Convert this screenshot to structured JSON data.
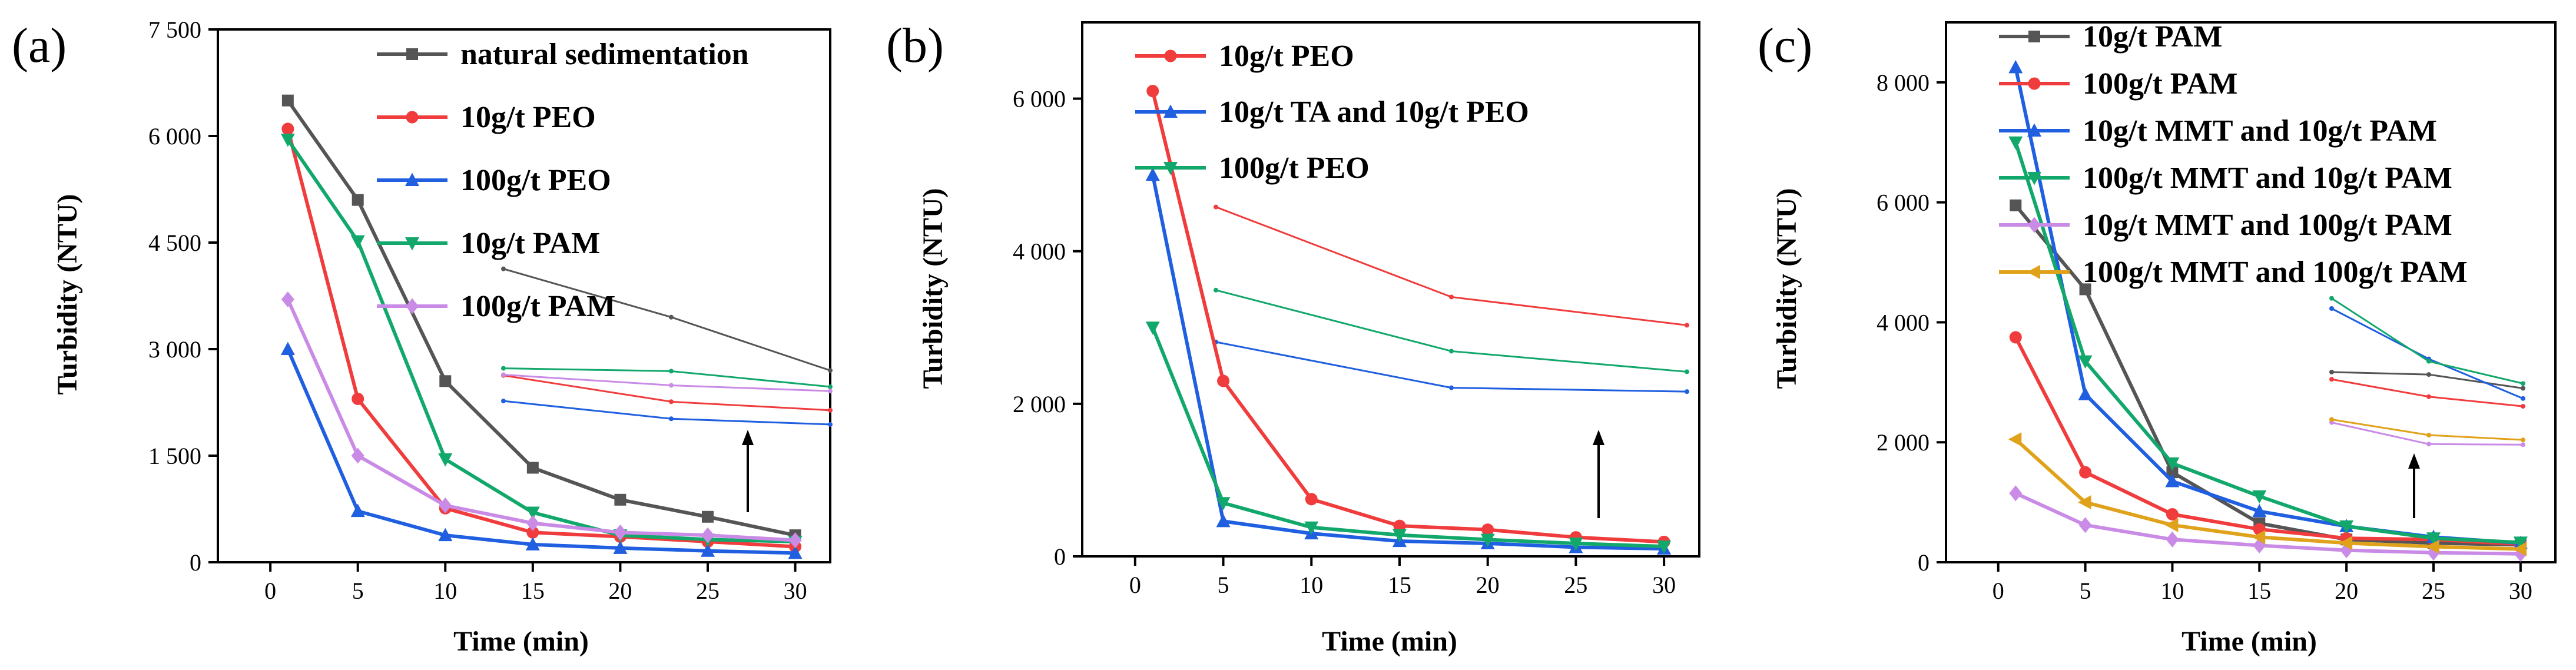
{
  "chart_data": [
    {
      "type": "line",
      "panel_label": "(a)",
      "xlabel": "Time (min)",
      "ylabel": "Turbidity (NTU)",
      "xlim": [
        -3,
        32
      ],
      "ylim": [
        0,
        7500
      ],
      "x_ticks": [
        0,
        5,
        10,
        15,
        20,
        25,
        30
      ],
      "y_ticks": [
        0,
        1500,
        3000,
        4500,
        6000,
        7500
      ],
      "x_tick_labels": [
        "0",
        "5",
        "10",
        "15",
        "20",
        "25",
        "30"
      ],
      "y_tick_labels": [
        "0",
        "1 500",
        "3 000",
        "4 500",
        "6 000",
        "7 500"
      ],
      "legend_position": "top-right",
      "annotation": "upward arrow pointing from inset to main curves",
      "series": [
        {
          "name": "natural sedimentation",
          "color": "#555555",
          "marker": "square",
          "x": [
            1,
            5,
            10,
            15,
            20,
            25,
            30
          ],
          "y": [
            6500,
            5100,
            2550,
            1330,
            880,
            640,
            380
          ],
          "inset_y": [
            4130,
            3450,
            2700
          ]
        },
        {
          "name": "10g/t PEO",
          "color": "#F03C3C",
          "marker": "circle",
          "x": [
            1,
            5,
            10,
            15,
            20,
            25,
            30
          ],
          "y": [
            6100,
            2300,
            760,
            420,
            360,
            290,
            220
          ],
          "inset_y": [
            2630,
            2260,
            2140
          ]
        },
        {
          "name": "100g/t PEO",
          "color": "#1F5FE0",
          "marker": "triangle-up",
          "x": [
            1,
            5,
            10,
            15,
            20,
            25,
            30
          ],
          "y": [
            3000,
            720,
            380,
            250,
            200,
            160,
            130
          ],
          "inset_y": [
            2270,
            2020,
            1940
          ]
        },
        {
          "name": "10g/t PAM",
          "color": "#12A86B",
          "marker": "triangle-down",
          "x": [
            1,
            5,
            10,
            15,
            20,
            25,
            30
          ],
          "y": [
            5950,
            4520,
            1450,
            700,
            380,
            320,
            290
          ],
          "inset_y": [
            2730,
            2690,
            2470
          ]
        },
        {
          "name": "100g/t PAM",
          "color": "#C98BE6",
          "marker": "diamond",
          "x": [
            1,
            5,
            10,
            15,
            20,
            25,
            30
          ],
          "y": [
            3700,
            1500,
            800,
            550,
            420,
            380,
            310
          ],
          "inset_y": [
            2640,
            2490,
            2410
          ]
        }
      ]
    },
    {
      "type": "line",
      "panel_label": "(b)",
      "xlabel": "Time (min)",
      "ylabel": "Turbidity (NTU)",
      "xlim": [
        -3,
        32
      ],
      "ylim": [
        0,
        7000
      ],
      "x_ticks": [
        0,
        5,
        10,
        15,
        20,
        25,
        30
      ],
      "y_ticks": [
        0,
        2000,
        4000,
        6000
      ],
      "x_tick_labels": [
        "0",
        "5",
        "10",
        "15",
        "20",
        "25",
        "30"
      ],
      "y_tick_labels": [
        "0",
        "2 000",
        "4 000",
        "6 000"
      ],
      "legend_position": "top-right",
      "annotation": "upward arrow pointing from inset to main curves",
      "series": [
        {
          "name": "10g/t PEO",
          "color": "#F03C3C",
          "marker": "circle",
          "x": [
            1,
            5,
            10,
            15,
            20,
            25,
            30
          ],
          "y": [
            6100,
            2300,
            750,
            400,
            350,
            250,
            190
          ],
          "inset_y": [
            4580,
            3400,
            3030
          ]
        },
        {
          "name": "10g/t TA and 10g/t PEO",
          "color": "#1F5FE0",
          "marker": "triangle-up",
          "x": [
            1,
            5,
            10,
            15,
            20,
            25,
            30
          ],
          "y": [
            5000,
            460,
            300,
            200,
            170,
            120,
            100
          ],
          "inset_y": [
            2810,
            2210,
            2160
          ]
        },
        {
          "name": "100g/t PEO",
          "color": "#12A86B",
          "marker": "triangle-down",
          "x": [
            1,
            5,
            10,
            15,
            20,
            25,
            30
          ],
          "y": [
            3000,
            700,
            380,
            280,
            220,
            170,
            130
          ],
          "inset_y": [
            3490,
            2690,
            2420
          ]
        }
      ]
    },
    {
      "type": "line",
      "panel_label": "(c)",
      "xlabel": "Time (min)",
      "ylabel": "Turbidity (NTU)",
      "xlim": [
        -3,
        32
      ],
      "ylim": [
        0,
        9000
      ],
      "x_ticks": [
        0,
        5,
        10,
        15,
        20,
        25,
        30
      ],
      "y_ticks": [
        0,
        2000,
        4000,
        6000,
        8000
      ],
      "x_tick_labels": [
        "0",
        "5",
        "10",
        "15",
        "20",
        "25",
        "30"
      ],
      "y_tick_labels": [
        "0",
        "2 000",
        "4 000",
        "6 000",
        "8 000"
      ],
      "legend_position": "top-right",
      "annotation": "upward arrow pointing from inset to main curves",
      "series": [
        {
          "name": "10g/t PAM",
          "color": "#555555",
          "marker": "square",
          "x": [
            1,
            5,
            10,
            15,
            20,
            25,
            30
          ],
          "y": [
            5950,
            4550,
            1500,
            650,
            380,
            320,
            290
          ],
          "inset_y": [
            3170,
            3130,
            2900
          ]
        },
        {
          "name": "100g/t PAM",
          "color": "#F03C3C",
          "marker": "circle",
          "x": [
            1,
            5,
            10,
            15,
            20,
            25,
            30
          ],
          "y": [
            3750,
            1500,
            800,
            550,
            400,
            380,
            300
          ],
          "inset_y": [
            3050,
            2760,
            2600
          ]
        },
        {
          "name": "10g/t MMT and 10g/t PAM",
          "color": "#1F5FE0",
          "marker": "triangle-up",
          "x": [
            1,
            5,
            10,
            15,
            20,
            25,
            30
          ],
          "y": [
            8250,
            2800,
            1350,
            850,
            600,
            420,
            320
          ],
          "inset_y": [
            4230,
            3390,
            2730
          ]
        },
        {
          "name": "100g/t MMT and 10g/t PAM",
          "color": "#12A86B",
          "marker": "triangle-down",
          "x": [
            1,
            5,
            10,
            15,
            20,
            25,
            30
          ],
          "y": [
            7000,
            3350,
            1650,
            1100,
            600,
            400,
            330
          ],
          "inset_y": [
            4400,
            3350,
            2980
          ]
        },
        {
          "name": "10g/t MMT and 100g/t PAM",
          "color": "#C98BE6",
          "marker": "diamond",
          "x": [
            1,
            5,
            10,
            15,
            20,
            25,
            30
          ],
          "y": [
            1150,
            620,
            380,
            280,
            200,
            160,
            140
          ],
          "inset_y": [
            2330,
            1970,
            1960
          ]
        },
        {
          "name": "100g/t MMT and 100g/t PAM",
          "color": "#E0A21A",
          "marker": "triangle-left",
          "x": [
            1,
            5,
            10,
            15,
            20,
            25,
            30
          ],
          "y": [
            2050,
            1000,
            620,
            420,
            320,
            260,
            220
          ],
          "inset_y": [
            2380,
            2120,
            2040
          ]
        }
      ]
    }
  ]
}
